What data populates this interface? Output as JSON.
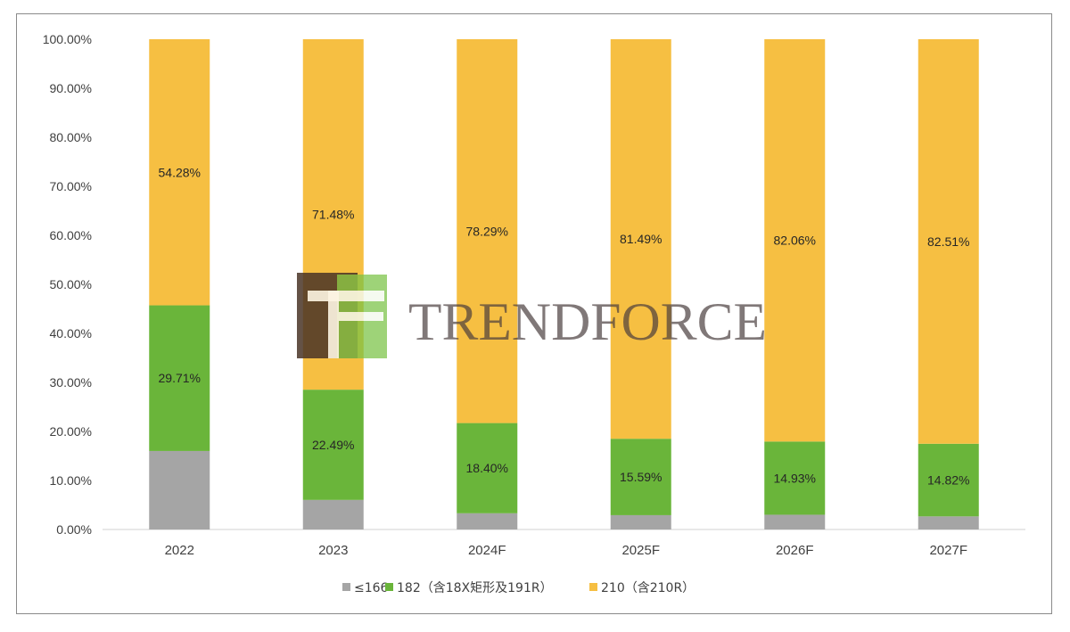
{
  "chart_data": {
    "type": "bar",
    "stacked": true,
    "categories": [
      "2022",
      "2023",
      "2024F",
      "2025F",
      "2026F",
      "2027F"
    ],
    "series": [
      {
        "name": "≤166",
        "color": "#a5a5a5",
        "values": [
          16.01,
          6.03,
          3.31,
          2.92,
          3.01,
          2.67
        ],
        "labels": [
          "",
          "",
          "",
          "",
          "",
          ""
        ]
      },
      {
        "name": "182（含18X矩形及191R）",
        "color": "#6ab53a",
        "values": [
          29.71,
          22.49,
          18.4,
          15.59,
          14.93,
          14.82
        ],
        "labels": [
          "29.71%",
          "22.49%",
          "18.40%",
          "15.59%",
          "14.93%",
          "14.82%"
        ]
      },
      {
        "name": "210（含210R）",
        "color": "#f6bf42",
        "values": [
          54.28,
          71.48,
          78.29,
          81.49,
          82.06,
          82.51
        ],
        "labels": [
          "54.28%",
          "71.48%",
          "78.29%",
          "81.49%",
          "82.06%",
          "82.51%"
        ]
      }
    ],
    "y_ticks": [
      "0.00%",
      "10.00%",
      "20.00%",
      "30.00%",
      "40.00%",
      "50.00%",
      "60.00%",
      "70.00%",
      "80.00%",
      "90.00%",
      "100.00%"
    ],
    "ylim": [
      0,
      100
    ],
    "grid": false,
    "legend_position": "bottom"
  },
  "watermark": {
    "text": "TRENDFORCE",
    "logo": "TF"
  }
}
